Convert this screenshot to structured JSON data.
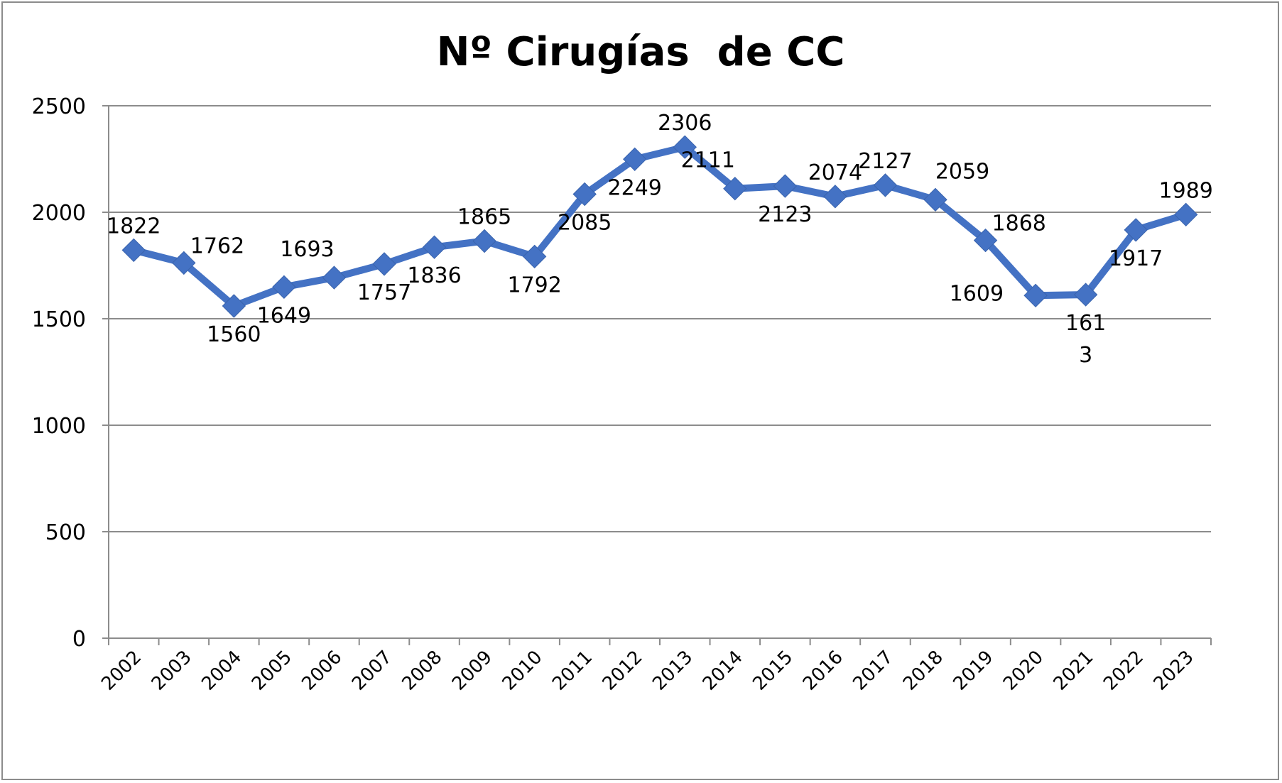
{
  "chart_data": {
    "type": "line",
    "title": "Nº Cirugías  de CC",
    "xlabel": "",
    "ylabel": "",
    "ylim": [
      0,
      2500
    ],
    "yticks": [
      0,
      500,
      1000,
      1500,
      2000,
      2500
    ],
    "grid": true,
    "legend": "none",
    "categories": [
      "2002",
      "2003",
      "2004",
      "2005",
      "2006",
      "2007",
      "2008",
      "2009",
      "2010",
      "2011",
      "2012",
      "2013",
      "2014",
      "2015",
      "2016",
      "2017",
      "2018",
      "2019",
      "2020",
      "2021",
      "2022",
      "2023"
    ],
    "series": [
      {
        "color": "#4472C4",
        "marker": "diamond",
        "values": [
          1822,
          1762,
          1560,
          1649,
          1693,
          1757,
          1836,
          1865,
          1792,
          2085,
          2249,
          2306,
          2111,
          2123,
          2074,
          2127,
          2059,
          1868,
          1609,
          1613,
          1917,
          1989
        ],
        "data_labels": [
          {
            "text": [
              "1822"
            ],
            "pos": "above"
          },
          {
            "text": [
              "1762"
            ],
            "pos": "right"
          },
          {
            "text": [
              "1560"
            ],
            "pos": "below"
          },
          {
            "text": [
              "1649"
            ],
            "pos": "below"
          },
          {
            "text": [
              "1693"
            ],
            "pos": "above-left"
          },
          {
            "text": [
              "1757"
            ],
            "pos": "below"
          },
          {
            "text": [
              "1836"
            ],
            "pos": "below"
          },
          {
            "text": [
              "1865"
            ],
            "pos": "above"
          },
          {
            "text": [
              "1792"
            ],
            "pos": "below"
          },
          {
            "text": [
              "2085"
            ],
            "pos": "below"
          },
          {
            "text": [
              "2249"
            ],
            "pos": "below"
          },
          {
            "text": [
              "2306"
            ],
            "pos": "above"
          },
          {
            "text": [
              "2111"
            ],
            "pos": "above-left"
          },
          {
            "text": [
              "2123"
            ],
            "pos": "below"
          },
          {
            "text": [
              "2074"
            ],
            "pos": "above"
          },
          {
            "text": [
              "2127"
            ],
            "pos": "above"
          },
          {
            "text": [
              "2059"
            ],
            "pos": "above-right"
          },
          {
            "text": [
              "1868"
            ],
            "pos": "right"
          },
          {
            "text": [
              "1609"
            ],
            "pos": "left"
          },
          {
            "text": [
              "161",
              "3"
            ],
            "pos": "below"
          },
          {
            "text": [
              "1917"
            ],
            "pos": "below"
          },
          {
            "text": [
              "1989"
            ],
            "pos": "above"
          }
        ]
      }
    ]
  }
}
